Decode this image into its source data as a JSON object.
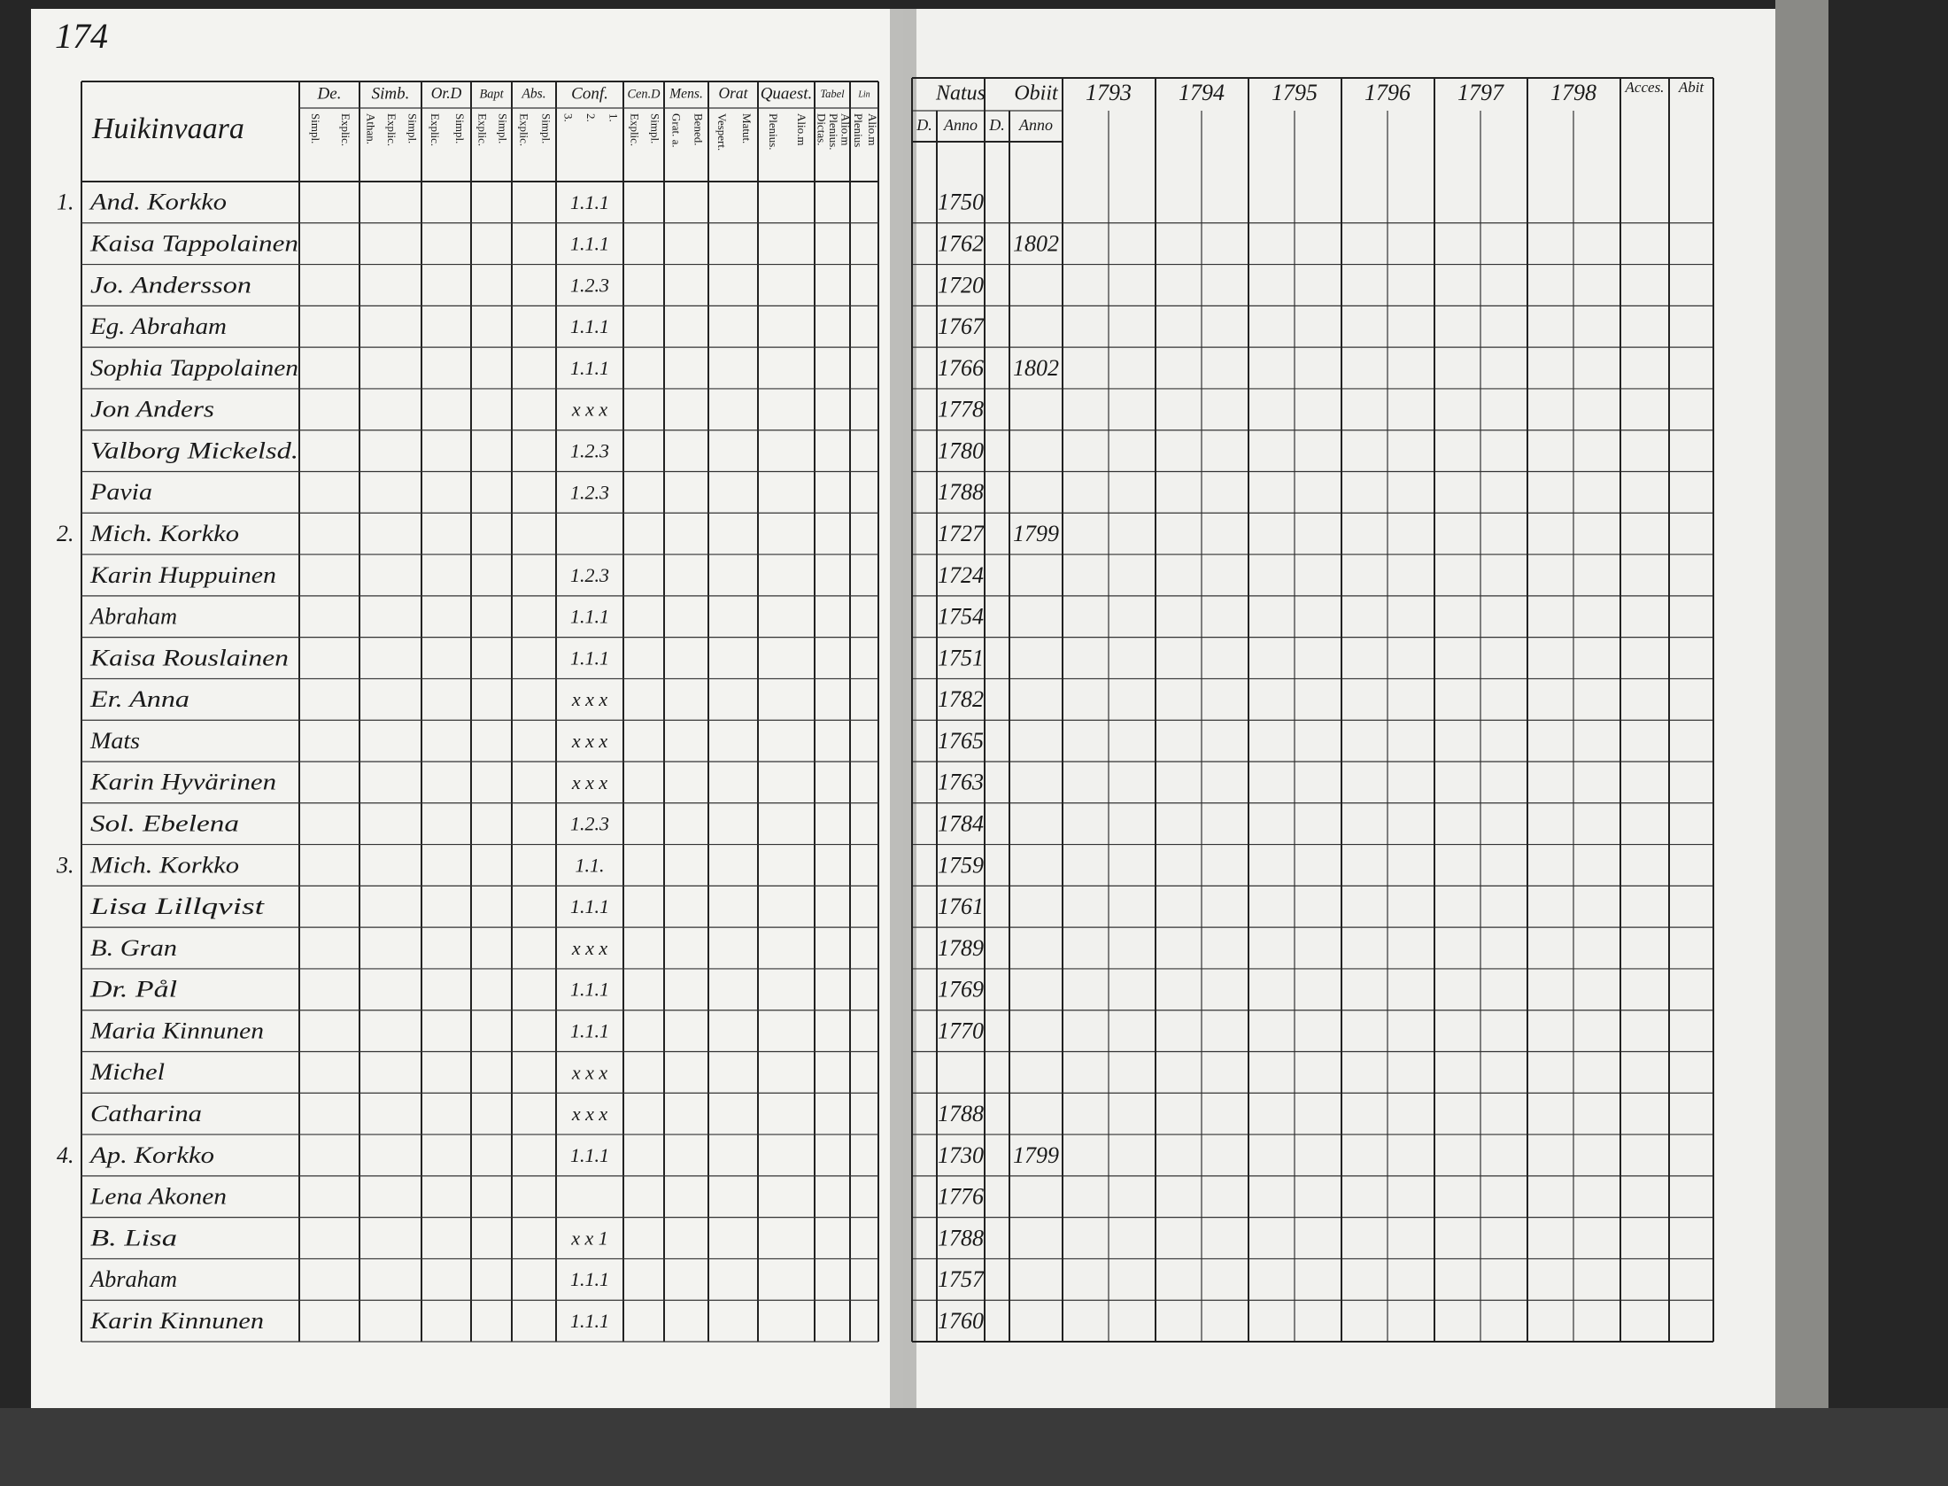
{
  "page_number": "174",
  "left_page": {
    "village": "Huikinvaara",
    "columns": [
      {
        "label": "De.",
        "sub": [
          "Simpl.",
          "Explic."
        ]
      },
      {
        "label": "Simb.",
        "sub": [
          "Athan.",
          "Explic.",
          "Simpl."
        ]
      },
      {
        "label": "Or.D",
        "sub": [
          "Explic.",
          "Simpl."
        ]
      },
      {
        "label": "Bapt",
        "sub": [
          "Explic.",
          "Simpl."
        ]
      },
      {
        "label": "Abs.",
        "sub": [
          "Explic.",
          "Simpl."
        ]
      },
      {
        "label": "Conf.",
        "sub": [
          "3.",
          "2.",
          "1."
        ]
      },
      {
        "label": "Cen.D",
        "sub": [
          "Explic.",
          "Simpl."
        ]
      },
      {
        "label": "Mens.",
        "sub": [
          "Grat. a.",
          "Bened."
        ]
      },
      {
        "label": "Orat",
        "sub": [
          "Vespert.",
          "Matut."
        ]
      },
      {
        "label": "Quaest.",
        "sub": [
          "Plenius.",
          "Alio.m"
        ]
      },
      {
        "label": "Tabel",
        "sub": [
          "Dictas.",
          "Plenius.",
          "Alio.m"
        ]
      },
      {
        "label": "Lin",
        "sub": [
          "Plenius",
          "Alio.m"
        ]
      }
    ]
  },
  "right_page": {
    "natus": "Natus",
    "obiit": "Obiit",
    "day": "D.",
    "anno": "Anno",
    "years": [
      "1793",
      "1794",
      "1795",
      "1796",
      "1797",
      "1798"
    ],
    "accessit": "Acces.",
    "abiit": "Abit"
  },
  "rows": [
    {
      "number": "1.",
      "name": "And. Korkko",
      "conf": "1.1.1",
      "born": "1750"
    },
    {
      "name": "Kaisa Tappolainen",
      "conf": "1.1.1",
      "born": "1762",
      "died": "1802"
    },
    {
      "name": "Jo. Andersson",
      "conf": "1.2.3",
      "born": "1720"
    },
    {
      "name": "Eg. Abraham",
      "conf": "1.1.1",
      "born": "1767"
    },
    {
      "name": "Sophia Tappolainen",
      "conf": "1.1.1",
      "born": "1766",
      "died": "1802"
    },
    {
      "name": "Jon Anders",
      "conf": "x x x",
      "born": "1778"
    },
    {
      "name": "Valborg Mickelsd.",
      "conf": "1.2.3",
      "born": "1780"
    },
    {
      "name": "Pavia",
      "conf": "1.2.3",
      "born": "1788"
    },
    {
      "number": "2.",
      "name": "Mich. Korkko",
      "born": "1727",
      "died": "1799"
    },
    {
      "name": "Karin Huppuinen",
      "conf": "1.2.3",
      "born": "1724"
    },
    {
      "name": "Abraham",
      "conf": "1.1.1",
      "born": "1754"
    },
    {
      "name": "Kaisa Rouslainen",
      "conf": "1.1.1",
      "born": "1751"
    },
    {
      "name": "Er. Anna",
      "conf": "x x x",
      "born": "1782"
    },
    {
      "name": "Mats",
      "conf": "x x x",
      "born": "1765"
    },
    {
      "name": "Karin Hyvärinen",
      "conf": "x x x",
      "born": "1763"
    },
    {
      "name": "Sol. Ebelena",
      "conf": "1.2.3",
      "born": "1784"
    },
    {
      "number": "3.",
      "name": "Mich. Korkko",
      "conf": "1.1.",
      "born": "1759"
    },
    {
      "name": "Lisa Lillqvist",
      "conf": "1.1.1",
      "born": "1761"
    },
    {
      "name": "B. Gran",
      "conf": "x x x",
      "born": "1789"
    },
    {
      "name": "Dr. Pål",
      "conf": "1.1.1",
      "born": "1769"
    },
    {
      "name": "Maria Kinnunen",
      "conf": "1.1.1",
      "born": "1770"
    },
    {
      "name": "Michel",
      "conf": "x x x"
    },
    {
      "name": "Catharina",
      "conf": "x x x",
      "born": "1788"
    },
    {
      "number": "4.",
      "name": "Ap. Korkko",
      "conf": "1.1.1",
      "born": "1730",
      "died": "1799"
    },
    {
      "name": "Lena Akonen",
      "born": "1776"
    },
    {
      "name": "B. Lisa",
      "conf": "x x 1",
      "born": "1788"
    },
    {
      "name": "Abraham",
      "conf": "1.1.1",
      "born": "1757"
    },
    {
      "name": "Karin Kinnunen",
      "conf": "1.1.1",
      "born": "1760"
    }
  ]
}
